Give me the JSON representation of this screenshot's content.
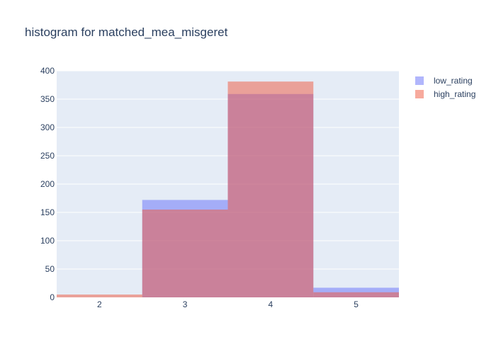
{
  "chart_data": {
    "type": "bar",
    "title": "histogram for matched_mea_misgeret",
    "xlabel": "",
    "ylabel": "",
    "categories": [
      "2",
      "3",
      "4",
      "5"
    ],
    "ylim": [
      0,
      400
    ],
    "y_ticks": [
      0,
      50,
      100,
      150,
      200,
      250,
      300,
      350,
      400
    ],
    "barmode": "overlay",
    "grid": true,
    "legend_position": "top-right",
    "series": [
      {
        "name": "low_rating",
        "color": "#636efa",
        "values": [
          0,
          172,
          359,
          17
        ]
      },
      {
        "name": "high_rating",
        "color": "#ef553b",
        "values": [
          5,
          155,
          381,
          9
        ]
      }
    ],
    "colors": {
      "plot_bg": "#e5ecf6",
      "grid": "#ffffff",
      "text": "#2a3f5f"
    }
  }
}
